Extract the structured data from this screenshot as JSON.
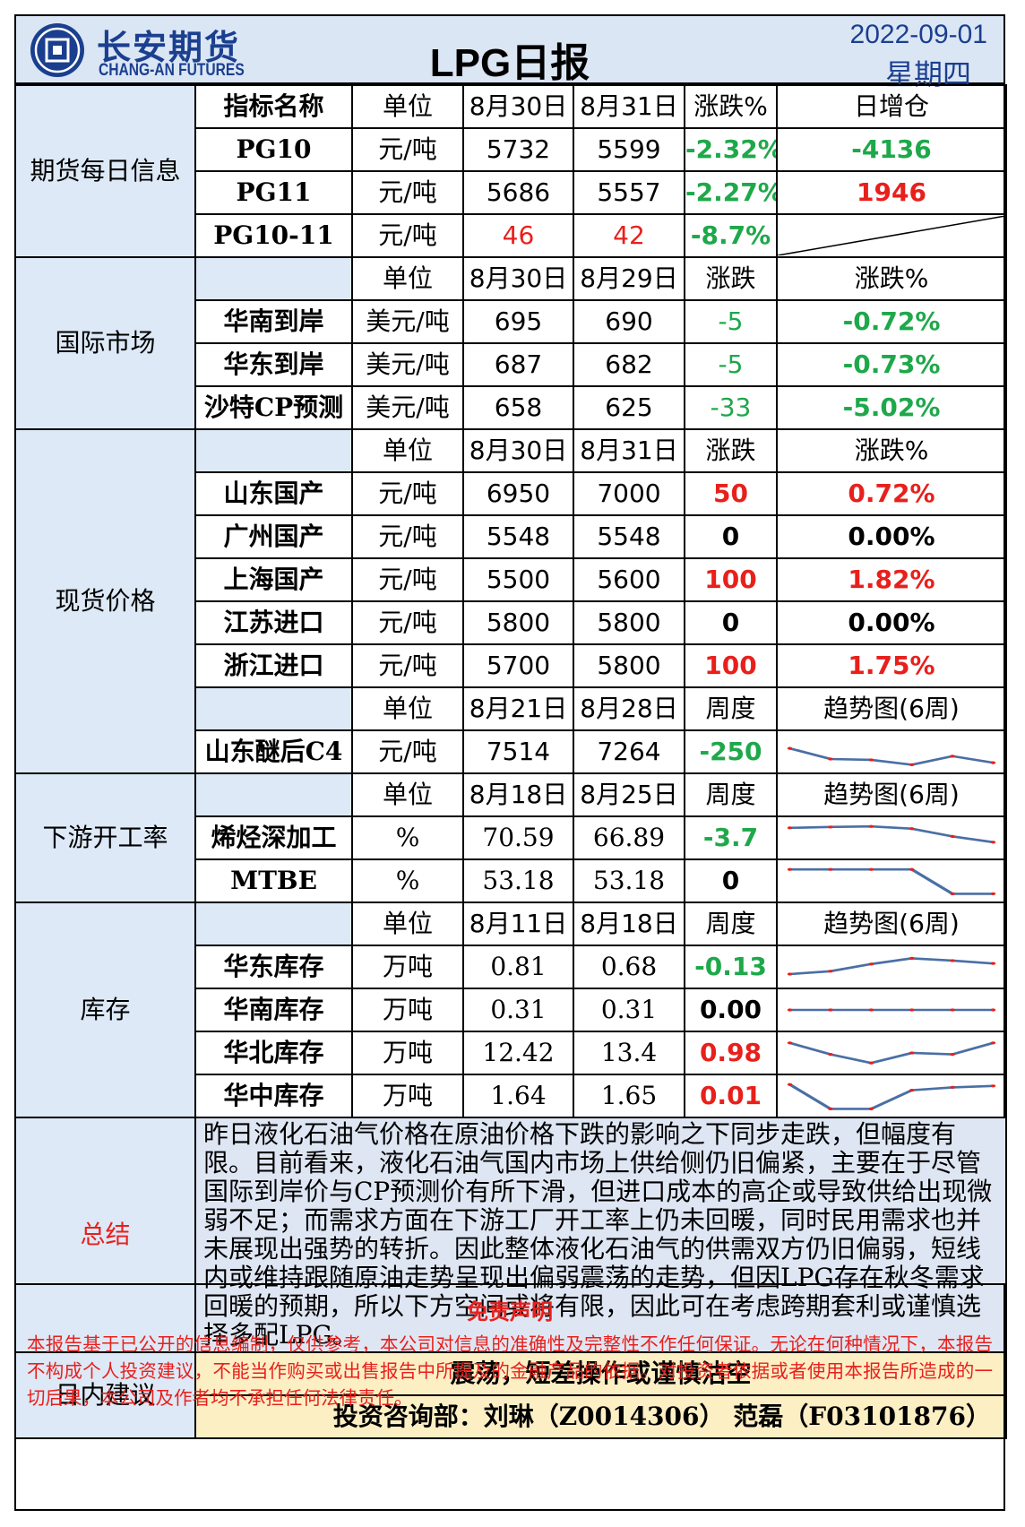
{
  "header": {
    "brand_cn": "长安期货",
    "brand_en": "CHANG-AN FUTURES",
    "title": "LPG日报",
    "date": "2022-09-01",
    "weekday": "星期四"
  },
  "colors": {
    "red": "#e8201c",
    "green": "#1ea84a",
    "blue_bg": "#dde9f7",
    "brand": "#1b3f8f"
  },
  "futures": {
    "category": "期货每日信息",
    "headers": [
      "指标名称",
      "单位",
      "8月30日",
      "8月31日",
      "涨跌%",
      "日增仓"
    ],
    "rows": [
      {
        "name": "PG10",
        "unit": "元/吨",
        "v1": "5732",
        "v2": "5599",
        "chg": "-2.32%",
        "oi": "-4136"
      },
      {
        "name": "PG11",
        "unit": "元/吨",
        "v1": "5686",
        "v2": "5557",
        "chg": "-2.27%",
        "oi": "1946"
      },
      {
        "name": "PG10-11",
        "unit": "元/吨",
        "v1": "46",
        "v2": "42",
        "chg": "-8.7%",
        "oi": ""
      }
    ]
  },
  "international": {
    "category": "国际市场",
    "headers": [
      "",
      "单位",
      "8月30日",
      "8月29日",
      "涨跌",
      "涨跌%"
    ],
    "rows": [
      {
        "name": "华南到岸",
        "unit": "美元/吨",
        "v1": "695",
        "v2": "690",
        "chg": "-5",
        "pct": "-0.72%"
      },
      {
        "name": "华东到岸",
        "unit": "美元/吨",
        "v1": "687",
        "v2": "682",
        "chg": "-5",
        "pct": "-0.73%"
      },
      {
        "name": "沙特CP预测",
        "unit": "美元/吨",
        "v1": "658",
        "v2": "625",
        "chg": "-33",
        "pct": "-5.02%"
      }
    ]
  },
  "spot": {
    "category": "现货价格",
    "headers": [
      "",
      "单位",
      "8月30日",
      "8月31日",
      "涨跌",
      "涨跌%"
    ],
    "rows": [
      {
        "name": "山东国产",
        "unit": "元/吨",
        "v1": "6950",
        "v2": "7000",
        "chg": "50",
        "pct": "0.72%"
      },
      {
        "name": "广州国产",
        "unit": "元/吨",
        "v1": "5548",
        "v2": "5548",
        "chg": "0",
        "pct": "0.00%"
      },
      {
        "name": "上海国产",
        "unit": "元/吨",
        "v1": "5500",
        "v2": "5600",
        "chg": "100",
        "pct": "1.82%"
      },
      {
        "name": "江苏进口",
        "unit": "元/吨",
        "v1": "5800",
        "v2": "5800",
        "chg": "0",
        "pct": "0.00%"
      },
      {
        "name": "浙江进口",
        "unit": "元/吨",
        "v1": "5700",
        "v2": "5800",
        "chg": "100",
        "pct": "1.75%"
      }
    ],
    "headers2": [
      "",
      "单位",
      "8月21日",
      "8月28日",
      "周度",
      "趋势图(6周)"
    ],
    "row2": {
      "name": "山东醚后C4",
      "unit": "元/吨",
      "v1": "7514",
      "v2": "7264",
      "chg": "-250"
    }
  },
  "downstream": {
    "category": "下游开工率",
    "headers": [
      "",
      "单位",
      "8月18日",
      "8月25日",
      "周度",
      "趋势图(6周)"
    ],
    "rows": [
      {
        "name": "烯烃深加工",
        "unit": "%",
        "v1": "70.59",
        "v2": "66.89",
        "chg": "-3.7"
      },
      {
        "name": "MTBE",
        "unit": "%",
        "v1": "53.18",
        "v2": "53.18",
        "chg": "0"
      }
    ]
  },
  "inventory": {
    "category": "库存",
    "headers": [
      "",
      "单位",
      "8月11日",
      "8月18日",
      "周度",
      "趋势图(6周)"
    ],
    "rows": [
      {
        "name": "华东库存",
        "unit": "万吨",
        "v1": "0.81",
        "v2": "0.68",
        "chg": "-0.13"
      },
      {
        "name": "华南库存",
        "unit": "万吨",
        "v1": "0.31",
        "v2": "0.31",
        "chg": "0.00"
      },
      {
        "name": "华北库存",
        "unit": "万吨",
        "v1": "12.42",
        "v2": "13.4",
        "chg": "0.98"
      },
      {
        "name": "华中库存",
        "unit": "万吨",
        "v1": "1.64",
        "v2": "1.65",
        "chg": "0.01"
      }
    ]
  },
  "trends": {
    "c4": [
      0.62,
      0.25,
      0.22,
      0.05,
      0.35,
      0.12
    ],
    "olefin": [
      0.85,
      0.88,
      0.9,
      0.82,
      0.55,
      0.35
    ],
    "mtbe": [
      0.9,
      0.9,
      0.9,
      0.9,
      0.05,
      0.05
    ],
    "east_inv": [
      0.25,
      0.35,
      0.6,
      0.8,
      0.72,
      0.62
    ],
    "south_inv": [
      0.5,
      0.5,
      0.5,
      0.5,
      0.5,
      0.5
    ],
    "north_inv": [
      0.85,
      0.45,
      0.15,
      0.5,
      0.45,
      0.85
    ],
    "central_inv": [
      0.9,
      0.05,
      0.05,
      0.7,
      0.8,
      0.85
    ]
  },
  "summary": {
    "label": "总结",
    "text": "昨日液化石油气价格在原油价格下跌的影响之下同步走跌，但幅度有限。目前看来，液化石油气国内市场上供给侧仍旧偏紧，主要在于尽管国际到岸价与CP预测价有所下滑，但进口成本的高企或导致供给出现微弱不足；而需求方面在下游工厂开工率上仍未回暖，同时民用需求也并未展现出强势的转折。因此整体液化石油气的供需双方仍旧偏弱，短线内或维持跟随原油走势呈现出偏弱震荡的走势，但因LPG存在秋冬需求回暖的预期，所以下方空间或将有限，因此可在考虑跨期套利或谨慎选择多配LPG。"
  },
  "advice": {
    "label": "日内建议",
    "text": "震荡，短差操作或谨慎沽空",
    "consultant": "投资咨询部：刘琳（Z0014306） 范磊（F03101876）"
  },
  "disclaimer": {
    "title": "免责声明",
    "text": "本报告基于已公开的信息编制，仅供参考，本公司对信息的准确性及完整性不作任何保证。无论在何种情况下，本报告不构成个人投资建议，不能当作购买或出售报告中所提及的金融产品的依据。对投资者依据或者使用本报告所造成的一切后果，本公司及作者均不承担任何法律责任。"
  }
}
